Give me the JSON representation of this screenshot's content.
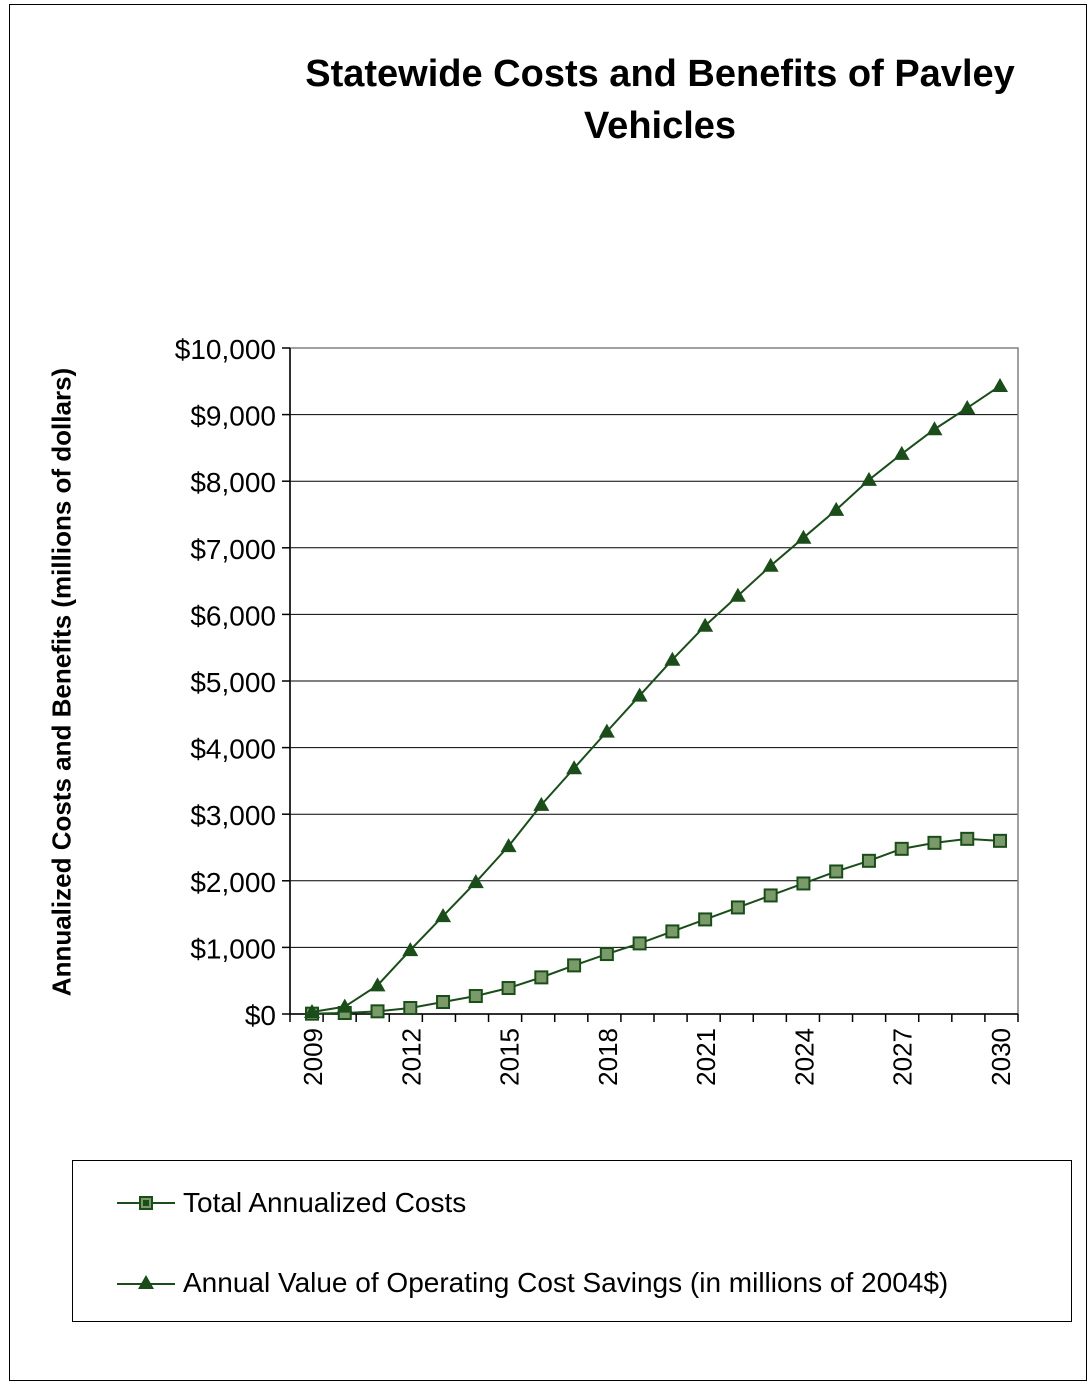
{
  "chart_data": {
    "type": "line",
    "title": "Statewide Costs and Benefits of Pavley Vehicles",
    "ylabel": "Annualized Costs and Benefits (millions of dollars)",
    "xlabel": "",
    "x": [
      2009,
      2010,
      2011,
      2012,
      2013,
      2014,
      2015,
      2016,
      2017,
      2018,
      2019,
      2020,
      2021,
      2022,
      2023,
      2024,
      2025,
      2026,
      2027,
      2028,
      2029,
      2030
    ],
    "x_tick_labels": [
      "2009",
      "2012",
      "2015",
      "2018",
      "2021",
      "2024",
      "2027",
      "2030"
    ],
    "y_tick_labels": [
      "$0",
      "$1,000",
      "$2,000",
      "$3,000",
      "$4,000",
      "$5,000",
      "$6,000",
      "$7,000",
      "$8,000",
      "$9,000",
      "$10,000"
    ],
    "ylim": [
      0,
      10000
    ],
    "grid": "horizontal",
    "legend_position": "bottom",
    "series": [
      {
        "name": "Total Annualized Costs",
        "marker": "square",
        "color": "#1a4d1a",
        "values": [
          5,
          15,
          40,
          90,
          180,
          270,
          390,
          550,
          730,
          900,
          1060,
          1240,
          1420,
          1600,
          1780,
          1960,
          2140,
          2300,
          2480,
          2570,
          2630,
          2600
        ]
      },
      {
        "name": "Annual Value of Operating Cost Savings (in millions of 2004$)",
        "marker": "triangle",
        "color": "#1a4d1a",
        "values": [
          30,
          110,
          430,
          960,
          1470,
          1980,
          2520,
          3140,
          3690,
          4240,
          4780,
          5320,
          5830,
          6280,
          6730,
          7150,
          7570,
          8020,
          8410,
          8780,
          9100,
          9430
        ]
      }
    ]
  }
}
